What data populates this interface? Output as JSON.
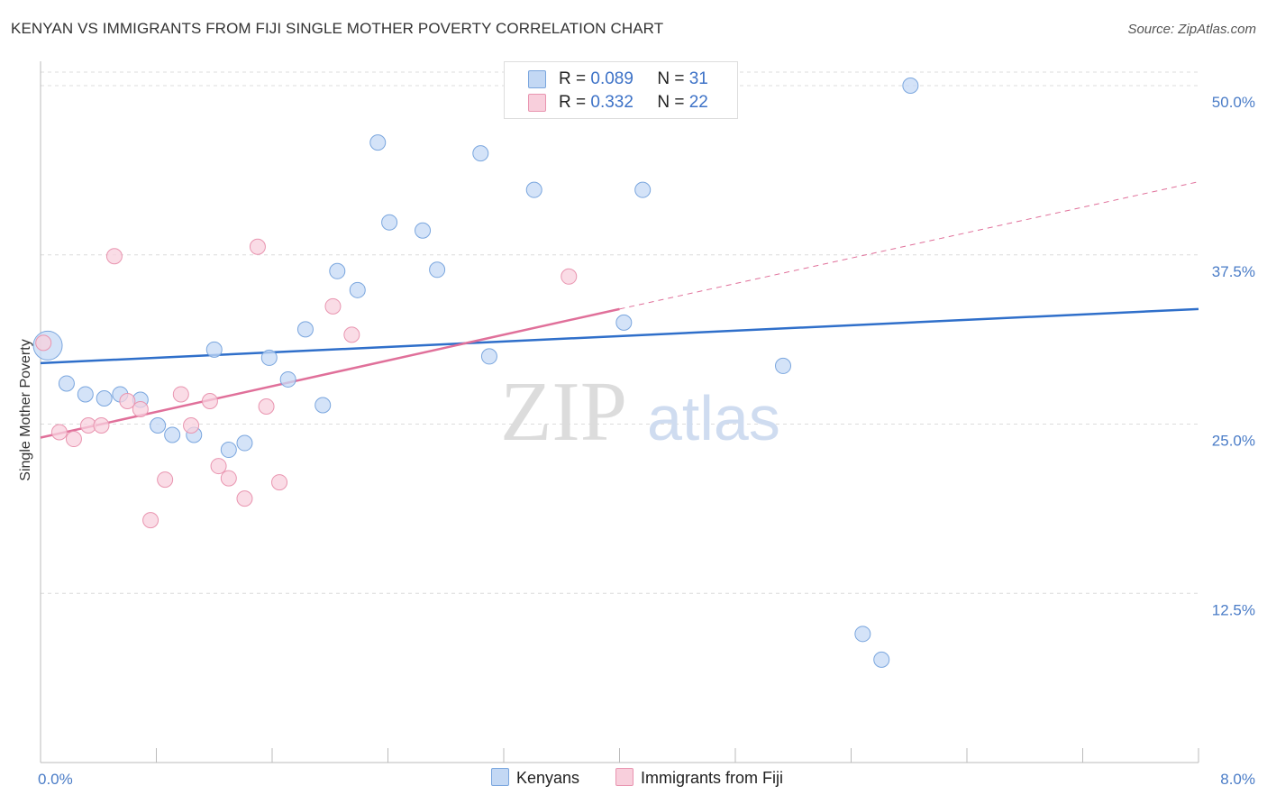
{
  "title": "KENYAN VS IMMIGRANTS FROM FIJI SINGLE MOTHER POVERTY CORRELATION CHART",
  "source": "Source: ZipAtlas.com",
  "watermark": {
    "zip": "ZIP",
    "atlas": "atlas"
  },
  "legend": {
    "rows": [
      {
        "r_label": "R =",
        "r_value": "0.089",
        "n_label": "N =",
        "n_value": "31"
      },
      {
        "r_label": "R =",
        "r_value": "0.332",
        "n_label": "N =",
        "n_value": "22"
      }
    ]
  },
  "bottom_legend": {
    "series1": "Kenyans",
    "series2": "Immigrants from Fiji"
  },
  "chart_data": {
    "type": "scatter",
    "title": "KENYAN VS IMMIGRANTS FROM FIJI SINGLE MOTHER POVERTY CORRELATION CHART",
    "xlabel": "",
    "ylabel": "Single Mother Poverty",
    "xlim": [
      0,
      8
    ],
    "ylim": [
      0,
      51
    ],
    "x_tick_labels": [
      "0.0%",
      "8.0%"
    ],
    "y_ticks": [
      12.5,
      25.0,
      37.5,
      50.0
    ],
    "y_tick_labels": [
      "12.5%",
      "25.0%",
      "37.5%",
      "50.0%"
    ],
    "grid": true,
    "legend_placement": "top-center",
    "colors": {
      "Kenyans": "#a9c7ef",
      "Immigrants from Fiji": "#f4b9cb",
      "kenyan_line": "#2f6fca",
      "fiji_line": "#e0709a"
    },
    "series": [
      {
        "name": "Kenyans",
        "r": 0.089,
        "n": 31,
        "trend": {
          "x": [
            0,
            8
          ],
          "y": [
            29.5,
            33.5
          ]
        },
        "points": [
          {
            "x": 0.05,
            "y": 30.8,
            "big": true
          },
          {
            "x": 0.18,
            "y": 28.0
          },
          {
            "x": 0.31,
            "y": 27.2
          },
          {
            "x": 0.44,
            "y": 26.9
          },
          {
            "x": 0.55,
            "y": 27.2
          },
          {
            "x": 0.69,
            "y": 26.8
          },
          {
            "x": 0.81,
            "y": 24.9
          },
          {
            "x": 0.91,
            "y": 24.2
          },
          {
            "x": 1.06,
            "y": 24.2
          },
          {
            "x": 1.2,
            "y": 30.5
          },
          {
            "x": 1.3,
            "y": 23.1
          },
          {
            "x": 1.41,
            "y": 23.6
          },
          {
            "x": 1.58,
            "y": 29.9
          },
          {
            "x": 1.71,
            "y": 28.3
          },
          {
            "x": 1.83,
            "y": 32.0
          },
          {
            "x": 1.95,
            "y": 26.4
          },
          {
            "x": 2.05,
            "y": 36.3
          },
          {
            "x": 2.19,
            "y": 34.9
          },
          {
            "x": 2.33,
            "y": 45.8
          },
          {
            "x": 2.41,
            "y": 39.9
          },
          {
            "x": 2.64,
            "y": 39.3
          },
          {
            "x": 2.74,
            "y": 36.4
          },
          {
            "x": 3.04,
            "y": 45.0
          },
          {
            "x": 3.1,
            "y": 30.0
          },
          {
            "x": 3.41,
            "y": 42.3
          },
          {
            "x": 4.03,
            "y": 32.5
          },
          {
            "x": 4.16,
            "y": 42.3
          },
          {
            "x": 5.13,
            "y": 29.3
          },
          {
            "x": 5.68,
            "y": 9.5
          },
          {
            "x": 5.81,
            "y": 7.6
          },
          {
            "x": 6.01,
            "y": 50.0
          }
        ]
      },
      {
        "name": "Immigrants from Fiji",
        "r": 0.332,
        "n": 22,
        "trend": {
          "x": [
            0,
            4.0
          ],
          "y": [
            24.0,
            33.5
          ]
        },
        "trend_dashed": {
          "x": [
            4.0,
            8.0
          ],
          "y": [
            33.5,
            42.9
          ]
        },
        "points": [
          {
            "x": 0.02,
            "y": 31.0
          },
          {
            "x": 0.13,
            "y": 24.4
          },
          {
            "x": 0.23,
            "y": 23.9
          },
          {
            "x": 0.33,
            "y": 24.9
          },
          {
            "x": 0.42,
            "y": 24.9
          },
          {
            "x": 0.51,
            "y": 37.4
          },
          {
            "x": 0.6,
            "y": 26.7
          },
          {
            "x": 0.69,
            "y": 26.1
          },
          {
            "x": 0.76,
            "y": 17.9
          },
          {
            "x": 0.86,
            "y": 20.9
          },
          {
            "x": 0.97,
            "y": 27.2
          },
          {
            "x": 1.04,
            "y": 24.9
          },
          {
            "x": 1.17,
            "y": 26.7
          },
          {
            "x": 1.23,
            "y": 21.9
          },
          {
            "x": 1.3,
            "y": 21.0
          },
          {
            "x": 1.41,
            "y": 19.5
          },
          {
            "x": 1.5,
            "y": 38.1
          },
          {
            "x": 1.56,
            "y": 26.3
          },
          {
            "x": 1.65,
            "y": 20.7
          },
          {
            "x": 2.02,
            "y": 33.7
          },
          {
            "x": 2.15,
            "y": 31.6
          },
          {
            "x": 3.65,
            "y": 35.9
          }
        ]
      }
    ]
  }
}
